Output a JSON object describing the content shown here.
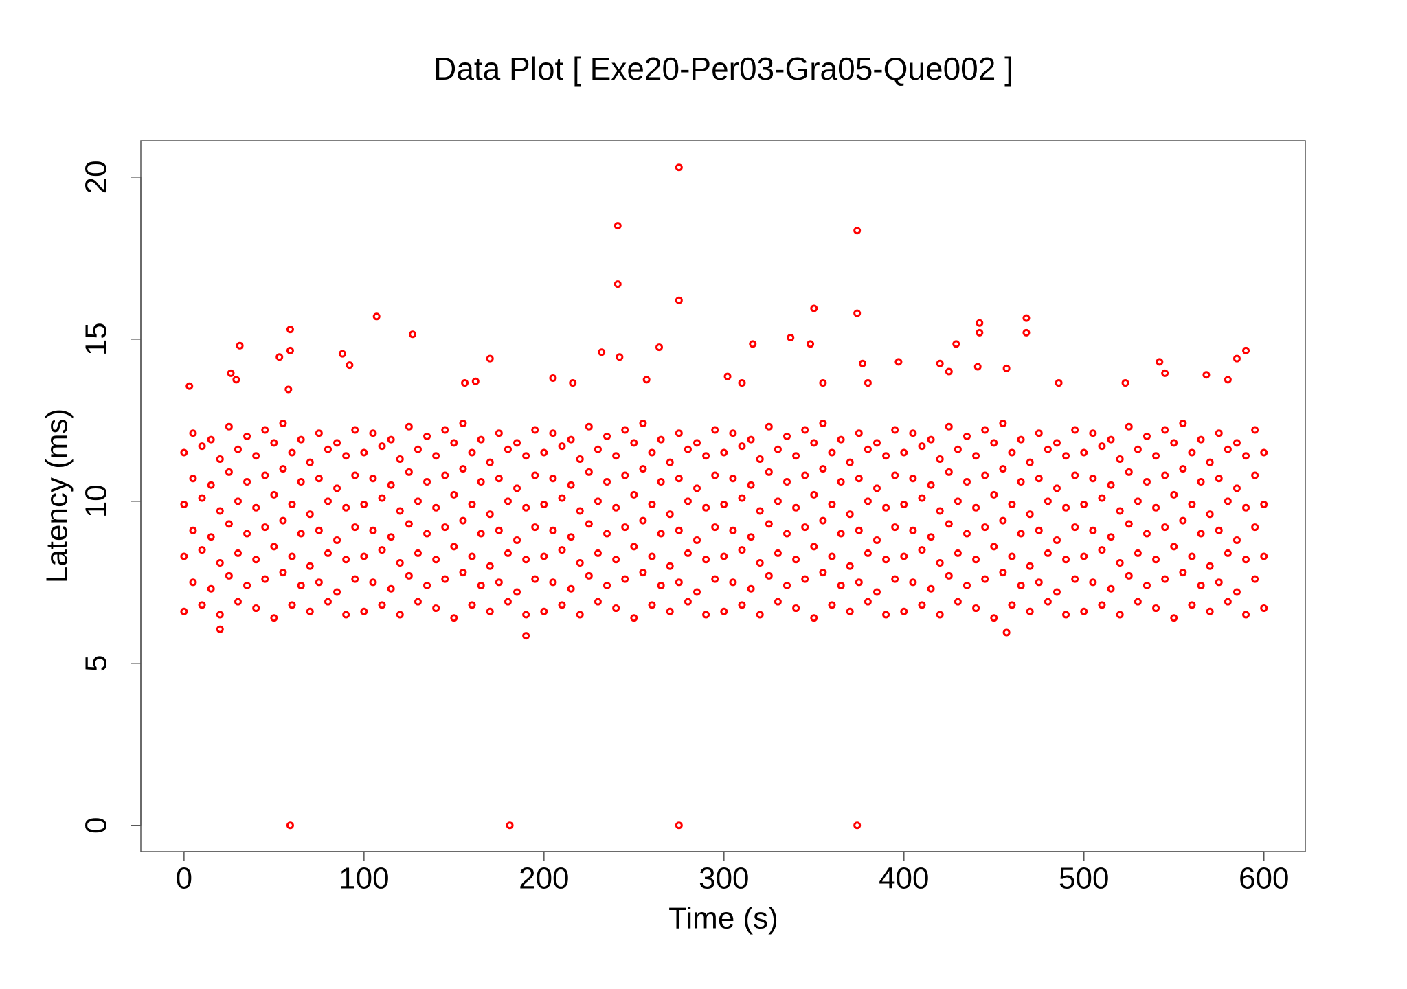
{
  "chart_data": {
    "type": "scatter",
    "title": "Data Plot [ Exe20-Per03-Gra05-Que002 ]",
    "x_label": "Time (s)",
    "y_label": "Latency (ms)",
    "color": "#ff0000",
    "xlim": [
      -24,
      623
    ],
    "ylim": [
      -0.81,
      21.12
    ],
    "xticks": [
      0,
      100,
      200,
      300,
      400,
      500,
      600
    ],
    "yticks": [
      0,
      5,
      10,
      15,
      20
    ],
    "x": [
      0,
      10,
      20,
      30,
      40,
      50,
      60,
      70,
      80,
      90,
      100,
      110,
      120,
      130,
      140,
      150,
      160,
      170,
      180,
      190,
      200,
      210,
      220,
      230,
      240,
      250,
      260,
      270,
      280,
      290,
      300,
      310,
      320,
      330,
      340,
      350,
      360,
      370,
      380,
      390,
      400,
      410,
      420,
      430,
      440,
      450,
      460,
      470,
      480,
      490,
      500,
      510,
      520,
      530,
      540,
      550,
      560,
      570,
      580,
      590,
      600,
      5,
      15,
      25,
      35,
      45,
      55,
      65,
      75,
      85,
      95,
      105,
      115,
      125,
      135,
      145,
      155,
      165,
      175,
      185,
      195,
      205,
      215,
      225,
      235,
      245,
      255,
      265,
      275,
      285,
      295,
      305,
      315,
      325,
      335,
      345,
      355,
      365,
      375,
      385,
      395,
      405,
      415,
      425,
      435,
      445,
      455,
      465,
      475,
      485,
      495,
      505,
      515,
      525,
      535,
      545,
      555,
      565,
      575,
      585,
      595,
      0,
      10,
      20,
      30,
      40,
      50,
      60,
      70,
      80,
      90,
      100,
      110,
      120,
      130,
      140,
      150,
      160,
      170,
      180,
      190,
      200,
      210,
      220,
      230,
      240,
      250,
      260,
      270,
      280,
      290,
      300,
      310,
      320,
      330,
      340,
      350,
      360,
      370,
      380,
      390,
      400,
      410,
      420,
      430,
      440,
      450,
      460,
      470,
      480,
      490,
      500,
      510,
      520,
      530,
      540,
      550,
      560,
      570,
      580,
      590,
      600,
      5,
      15,
      25,
      35,
      45,
      55,
      65,
      75,
      85,
      95,
      105,
      115,
      125,
      135,
      145,
      155,
      165,
      175,
      185,
      195,
      205,
      215,
      225,
      235,
      245,
      255,
      265,
      275,
      285,
      295,
      305,
      315,
      325,
      335,
      345,
      355,
      365,
      375,
      385,
      395,
      405,
      415,
      425,
      435,
      445,
      455,
      465,
      475,
      485,
      495,
      505,
      515,
      525,
      535,
      545,
      555,
      565,
      575,
      585,
      595,
      0,
      10,
      20,
      30,
      40,
      50,
      60,
      70,
      80,
      90,
      100,
      110,
      120,
      130,
      140,
      150,
      160,
      170,
      180,
      190,
      200,
      210,
      220,
      230,
      240,
      250,
      260,
      270,
      280,
      290,
      300,
      310,
      320,
      330,
      340,
      350,
      360,
      370,
      380,
      390,
      400,
      410,
      420,
      430,
      440,
      450,
      460,
      470,
      480,
      490,
      500,
      510,
      520,
      530,
      540,
      550,
      560,
      570,
      580,
      590,
      600,
      5,
      15,
      25,
      35,
      45,
      55,
      65,
      75,
      85,
      95,
      105,
      115,
      125,
      135,
      145,
      155,
      165,
      175,
      185,
      195,
      205,
      215,
      225,
      235,
      245,
      255,
      265,
      275,
      285,
      295,
      305,
      315,
      325,
      335,
      345,
      355,
      365,
      375,
      385,
      395,
      405,
      415,
      425,
      435,
      445,
      455,
      465,
      475,
      485,
      495,
      505,
      515,
      525,
      535,
      545,
      555,
      565,
      575,
      585,
      595,
      0,
      10,
      20,
      30,
      40,
      50,
      60,
      70,
      80,
      90,
      100,
      110,
      120,
      130,
      140,
      150,
      160,
      170,
      180,
      190,
      200,
      210,
      220,
      230,
      240,
      250,
      260,
      270,
      280,
      290,
      300,
      310,
      320,
      330,
      340,
      350,
      360,
      370,
      380,
      390,
      400,
      410,
      420,
      430,
      440,
      450,
      460,
      470,
      480,
      490,
      500,
      510,
      520,
      530,
      540,
      550,
      560,
      570,
      580,
      590,
      600,
      5,
      15,
      25,
      35,
      45,
      55,
      65,
      75,
      85,
      95,
      105,
      115,
      125,
      135,
      145,
      155,
      165,
      175,
      185,
      195,
      205,
      215,
      225,
      235,
      245,
      255,
      265,
      275,
      285,
      295,
      305,
      315,
      325,
      335,
      345,
      355,
      365,
      375,
      385,
      395,
      405,
      415,
      425,
      435,
      445,
      455,
      465,
      475,
      485,
      495,
      505,
      515,
      525,
      535,
      545,
      555,
      565,
      575,
      585,
      595,
      59,
      181,
      275,
      374,
      275,
      241,
      374,
      241,
      275,
      350,
      374,
      107,
      468,
      442,
      442,
      59,
      127,
      468,
      31,
      59,
      88,
      264,
      232,
      242,
      316,
      337,
      348,
      377,
      397,
      420,
      429,
      542,
      590,
      585,
      53,
      170,
      3,
      26,
      29,
      58,
      92,
      162,
      156,
      205,
      216,
      257,
      302,
      310,
      355,
      380,
      425,
      441,
      457,
      486,
      523,
      545,
      568,
      580,
      190,
      457,
      20
    ],
    "values": [
      6.6,
      6.8,
      6.5,
      6.9,
      6.7,
      6.4,
      6.8,
      6.6,
      6.9,
      6.5,
      6.6,
      6.8,
      6.5,
      6.9,
      6.7,
      6.4,
      6.8,
      6.6,
      6.9,
      6.5,
      6.6,
      6.8,
      6.5,
      6.9,
      6.7,
      6.4,
      6.8,
      6.6,
      6.9,
      6.5,
      6.6,
      6.8,
      6.5,
      6.9,
      6.7,
      6.4,
      6.8,
      6.6,
      6.9,
      6.5,
      6.6,
      6.8,
      6.5,
      6.9,
      6.7,
      6.4,
      6.8,
      6.6,
      6.9,
      6.5,
      6.6,
      6.8,
      6.5,
      6.9,
      6.7,
      6.4,
      6.8,
      6.6,
      6.9,
      6.5,
      6.7,
      7.5,
      7.3,
      7.7,
      7.4,
      7.6,
      7.8,
      7.4,
      7.5,
      7.2,
      7.6,
      7.5,
      7.3,
      7.7,
      7.4,
      7.6,
      7.8,
      7.4,
      7.5,
      7.2,
      7.6,
      7.5,
      7.3,
      7.7,
      7.4,
      7.6,
      7.8,
      7.4,
      7.5,
      7.2,
      7.6,
      7.5,
      7.3,
      7.7,
      7.4,
      7.6,
      7.8,
      7.4,
      7.5,
      7.2,
      7.6,
      7.5,
      7.3,
      7.7,
      7.4,
      7.6,
      7.8,
      7.4,
      7.5,
      7.2,
      7.6,
      7.5,
      7.3,
      7.7,
      7.4,
      7.6,
      7.8,
      7.4,
      7.5,
      7.2,
      7.6,
      8.3,
      8.5,
      8.1,
      8.4,
      8.2,
      8.6,
      8.3,
      8.0,
      8.4,
      8.2,
      8.3,
      8.5,
      8.1,
      8.4,
      8.2,
      8.6,
      8.3,
      8.0,
      8.4,
      8.2,
      8.3,
      8.5,
      8.1,
      8.4,
      8.2,
      8.6,
      8.3,
      8.0,
      8.4,
      8.2,
      8.3,
      8.5,
      8.1,
      8.4,
      8.2,
      8.6,
      8.3,
      8.0,
      8.4,
      8.2,
      8.3,
      8.5,
      8.1,
      8.4,
      8.2,
      8.6,
      8.3,
      8.0,
      8.4,
      8.2,
      8.3,
      8.5,
      8.1,
      8.4,
      8.2,
      8.6,
      8.3,
      8.0,
      8.4,
      8.2,
      8.3,
      9.1,
      8.9,
      9.3,
      9.0,
      9.2,
      9.4,
      9.0,
      9.1,
      8.8,
      9.2,
      9.1,
      8.9,
      9.3,
      9.0,
      9.2,
      9.4,
      9.0,
      9.1,
      8.8,
      9.2,
      9.1,
      8.9,
      9.3,
      9.0,
      9.2,
      9.4,
      9.0,
      9.1,
      8.8,
      9.2,
      9.1,
      8.9,
      9.3,
      9.0,
      9.2,
      9.4,
      9.0,
      9.1,
      8.8,
      9.2,
      9.1,
      8.9,
      9.3,
      9.0,
      9.2,
      9.4,
      9.0,
      9.1,
      8.8,
      9.2,
      9.1,
      8.9,
      9.3,
      9.0,
      9.2,
      9.4,
      9.0,
      9.1,
      8.8,
      9.2,
      9.9,
      10.1,
      9.7,
      10.0,
      9.8,
      10.2,
      9.9,
      9.6,
      10.0,
      9.8,
      9.9,
      10.1,
      9.7,
      10.0,
      9.8,
      10.2,
      9.9,
      9.6,
      10.0,
      9.8,
      9.9,
      10.1,
      9.7,
      10.0,
      9.8,
      10.2,
      9.9,
      9.6,
      10.0,
      9.8,
      9.9,
      10.1,
      9.7,
      10.0,
      9.8,
      10.2,
      9.9,
      9.6,
      10.0,
      9.8,
      9.9,
      10.1,
      9.7,
      10.0,
      9.8,
      10.2,
      9.9,
      9.6,
      10.0,
      9.8,
      9.9,
      10.1,
      9.7,
      10.0,
      9.8,
      10.2,
      9.9,
      9.6,
      10.0,
      9.8,
      9.9,
      10.7,
      10.5,
      10.9,
      10.6,
      10.8,
      11.0,
      10.6,
      10.7,
      10.4,
      10.8,
      10.7,
      10.5,
      10.9,
      10.6,
      10.8,
      11.0,
      10.6,
      10.7,
      10.4,
      10.8,
      10.7,
      10.5,
      10.9,
      10.6,
      10.8,
      11.0,
      10.6,
      10.7,
      10.4,
      10.8,
      10.7,
      10.5,
      10.9,
      10.6,
      10.8,
      11.0,
      10.6,
      10.7,
      10.4,
      10.8,
      10.7,
      10.5,
      10.9,
      10.6,
      10.8,
      11.0,
      10.6,
      10.7,
      10.4,
      10.8,
      10.7,
      10.5,
      10.9,
      10.6,
      10.8,
      11.0,
      10.6,
      10.7,
      10.4,
      10.8,
      11.5,
      11.7,
      11.3,
      11.6,
      11.4,
      11.8,
      11.5,
      11.2,
      11.6,
      11.4,
      11.5,
      11.7,
      11.3,
      11.6,
      11.4,
      11.8,
      11.5,
      11.2,
      11.6,
      11.4,
      11.5,
      11.7,
      11.3,
      11.6,
      11.4,
      11.8,
      11.5,
      11.2,
      11.6,
      11.4,
      11.5,
      11.7,
      11.3,
      11.6,
      11.4,
      11.8,
      11.5,
      11.2,
      11.6,
      11.4,
      11.5,
      11.7,
      11.3,
      11.6,
      11.4,
      11.8,
      11.5,
      11.2,
      11.6,
      11.4,
      11.5,
      11.7,
      11.3,
      11.6,
      11.4,
      11.8,
      11.5,
      11.2,
      11.6,
      11.4,
      11.5,
      12.1,
      11.9,
      12.3,
      12.0,
      12.2,
      12.4,
      11.9,
      12.1,
      11.8,
      12.2,
      12.1,
      11.9,
      12.3,
      12.0,
      12.2,
      12.4,
      11.9,
      12.1,
      11.8,
      12.2,
      12.1,
      11.9,
      12.3,
      12.0,
      12.2,
      12.4,
      11.9,
      12.1,
      11.8,
      12.2,
      12.1,
      11.9,
      12.3,
      12.0,
      12.2,
      12.4,
      11.9,
      12.1,
      11.8,
      12.2,
      12.1,
      11.9,
      12.3,
      12.0,
      12.2,
      12.4,
      11.9,
      12.1,
      11.8,
      12.2,
      12.1,
      11.9,
      12.3,
      12.0,
      12.2,
      12.4,
      11.9,
      12.1,
      11.8,
      12.2,
      0,
      0,
      0,
      0,
      20.3,
      18.5,
      18.35,
      16.7,
      16.2,
      15.95,
      15.8,
      15.7,
      15.65,
      15.5,
      15.2,
      15.3,
      15.15,
      15.2,
      14.8,
      14.65,
      14.55,
      14.75,
      14.6,
      14.45,
      14.85,
      15.05,
      14.85,
      14.25,
      14.3,
      14.25,
      14.85,
      14.3,
      14.65,
      14.4,
      14.45,
      14.4,
      13.55,
      13.95,
      13.75,
      13.45,
      14.2,
      13.7,
      13.65,
      13.8,
      13.65,
      13.75,
      13.85,
      13.65,
      13.65,
      13.65,
      14.0,
      14.15,
      14.1,
      13.65,
      13.65,
      13.95,
      13.9,
      13.75,
      5.85,
      5.95,
      6.05
    ]
  }
}
